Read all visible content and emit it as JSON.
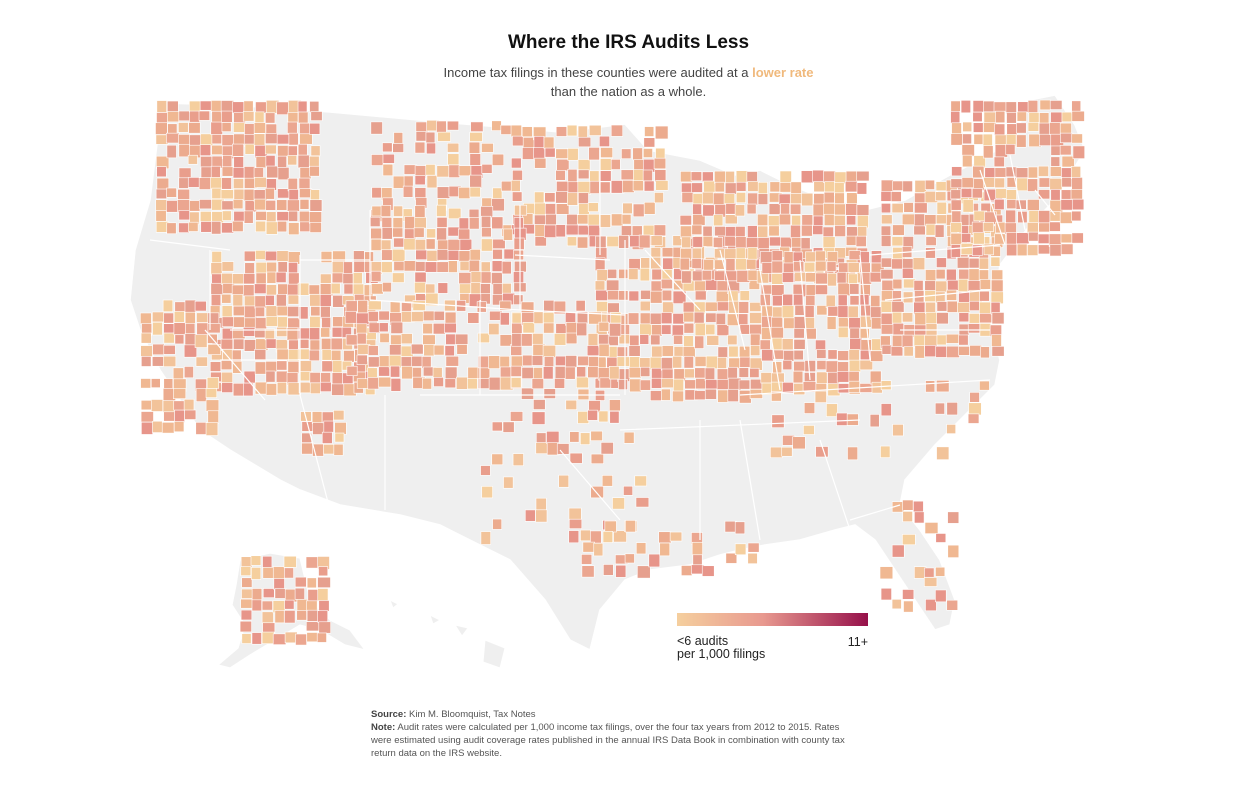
{
  "title": "Where the IRS Audits Less",
  "subtitle": {
    "line1_prefix": "Income tax filings in these counties were audited at a ",
    "highlight": "lower rate",
    "line2": "than the nation as a whole."
  },
  "legend": {
    "low_label": "<6 audits",
    "low_label_2": "per 1,000 filings",
    "high_label": "11+",
    "color_low": "#f5cf9e",
    "color_mid": "#e8998f",
    "color_high": "#96104a"
  },
  "colors": {
    "highlight_text": "#f0b97c",
    "no_data": "#efefef",
    "boundary": "#ffffff"
  },
  "source": {
    "label": "Source:",
    "text": " Kim M. Bloomquist, Tax Notes"
  },
  "note": {
    "label": "Note:",
    "text": " Audit rates were calculated per 1,000 income tax filings, over the four tax years from 2012 to 2015. Rates were estimated using audit coverage rates published in the annual IRS Data Book in combination with county tax return data on the IRS website."
  }
}
